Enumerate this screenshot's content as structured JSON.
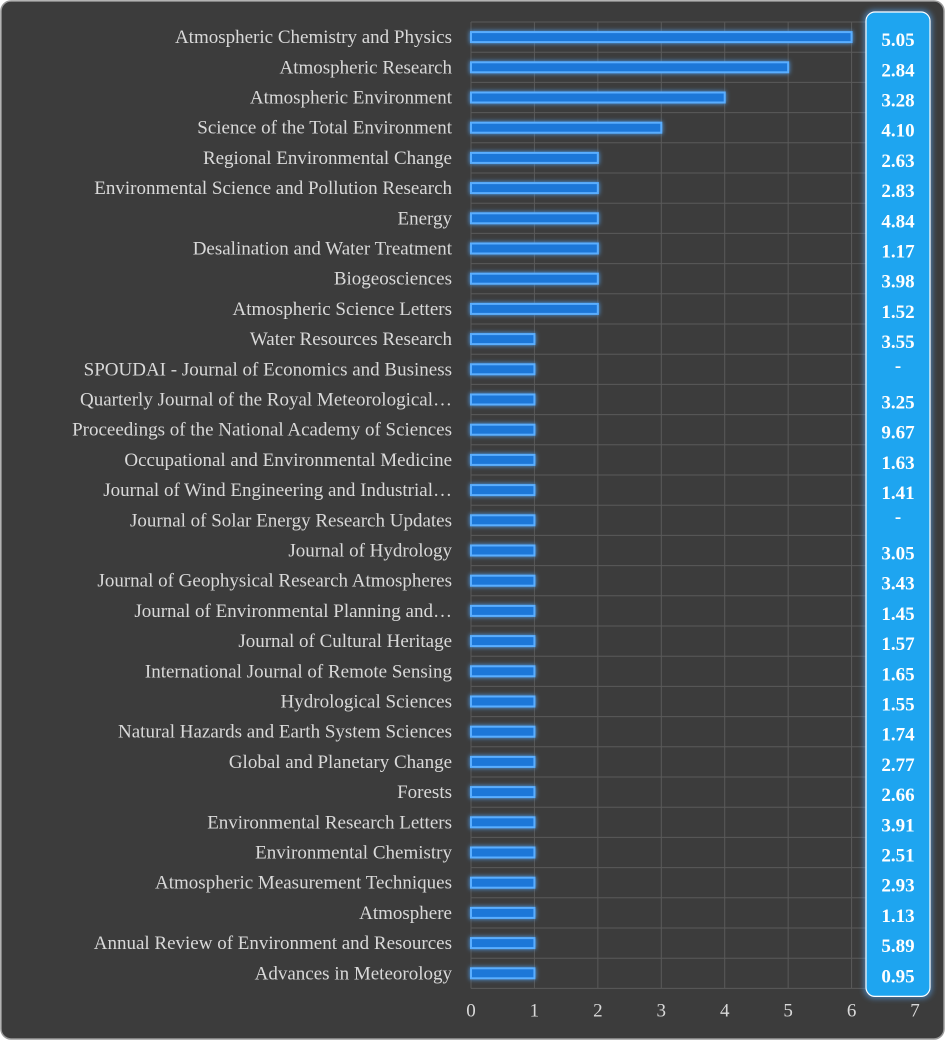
{
  "chart_data": {
    "type": "bar",
    "orientation": "horizontal",
    "categories": [
      "Atmospheric Chemistry and Physics",
      "Atmospheric Research",
      "Atmospheric Environment",
      "Science of the Total Environment",
      "Regional Environmental Change",
      "Environmental Science and Pollution Research",
      "Energy",
      "Desalination and Water Treatment",
      "Biogeosciences",
      "Atmospheric Science Letters",
      "Water Resources Research",
      "SPOUDAI - Journal of Economics and Business",
      "Quarterly Journal of the Royal Meteorological…",
      "Proceedings of the National Academy of Sciences",
      "Occupational and Environmental Medicine",
      "Journal of Wind Engineering and Industrial…",
      "Journal of Solar Energy Research Updates",
      "Journal of Hydrology",
      "Journal of Geophysical Research Atmospheres",
      "Journal of Environmental Planning and…",
      "Journal of Cultural Heritage",
      "International Journal of Remote Sensing",
      "Hydrological Sciences",
      "Natural Hazards and Earth System Sciences",
      "Global and Planetary Change",
      "Forests",
      "Environmental Research Letters",
      "Environmental Chemistry",
      "Atmospheric Measurement Techniques",
      "Atmosphere",
      "Annual Review of Environment and Resources",
      "Advances in Meteorology"
    ],
    "values": [
      6,
      5,
      4,
      3,
      2,
      2,
      2,
      2,
      2,
      2,
      1,
      1,
      1,
      1,
      1,
      1,
      1,
      1,
      1,
      1,
      1,
      1,
      1,
      1,
      1,
      1,
      1,
      1,
      1,
      1,
      1,
      1
    ],
    "value_labels": [
      "5.05",
      "2.84",
      "3.28",
      "4.10",
      "2.63",
      "2.83",
      "4.84",
      "1.17",
      "3.98",
      "1.52",
      "3.55",
      "-",
      "3.25",
      "9.67",
      "1.63",
      "1.41",
      "-",
      "3.05",
      "3.43",
      "1.45",
      "1.57",
      "1.65",
      "1.55",
      "1.74",
      "2.77",
      "2.66",
      "3.91",
      "2.51",
      "2.93",
      "1.13",
      "5.89",
      "0.95"
    ],
    "xlim": [
      0,
      7
    ],
    "xticks": [
      "0",
      "1",
      "2",
      "3",
      "4",
      "5",
      "6",
      "7"
    ],
    "grid": true,
    "colors": {
      "background": "#3c3c3c",
      "bar_fill": "#1f77d8",
      "bar_glow": "#5aaeff",
      "value_column": "#1ea5f0",
      "grid": "#5a5a5a",
      "text": "#d9d9d9"
    }
  }
}
